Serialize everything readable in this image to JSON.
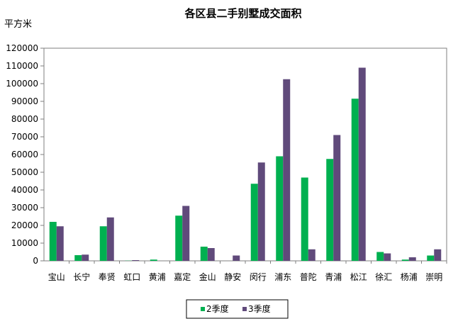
{
  "chart_data": {
    "type": "bar",
    "title": "各区县二手别墅成交面积",
    "ylabel": "平方米",
    "xlabel": "",
    "ylim": [
      0,
      120000
    ],
    "yticks": [
      0,
      10000,
      20000,
      30000,
      40000,
      50000,
      60000,
      70000,
      80000,
      90000,
      100000,
      110000,
      120000
    ],
    "grid": false,
    "legend_position": "bottom",
    "categories": [
      "宝山",
      "长宁",
      "奉贤",
      "虹口",
      "黄浦",
      "嘉定",
      "金山",
      "静安",
      "闵行",
      "浦东",
      "普陀",
      "青浦",
      "松江",
      "徐汇",
      "杨浦",
      "崇明"
    ],
    "series": [
      {
        "name": "2季度",
        "color": "#00b050",
        "values": [
          22000,
          3200,
          19500,
          100,
          700,
          25500,
          8000,
          0,
          43500,
          59000,
          47000,
          57500,
          91500,
          5000,
          700,
          3000
        ]
      },
      {
        "name": "3季度",
        "color": "#604a7b",
        "values": [
          19500,
          3500,
          24500,
          400,
          0,
          31000,
          7200,
          3000,
          55500,
          102500,
          6500,
          71000,
          109000,
          4200,
          2000,
          6500
        ]
      }
    ]
  }
}
